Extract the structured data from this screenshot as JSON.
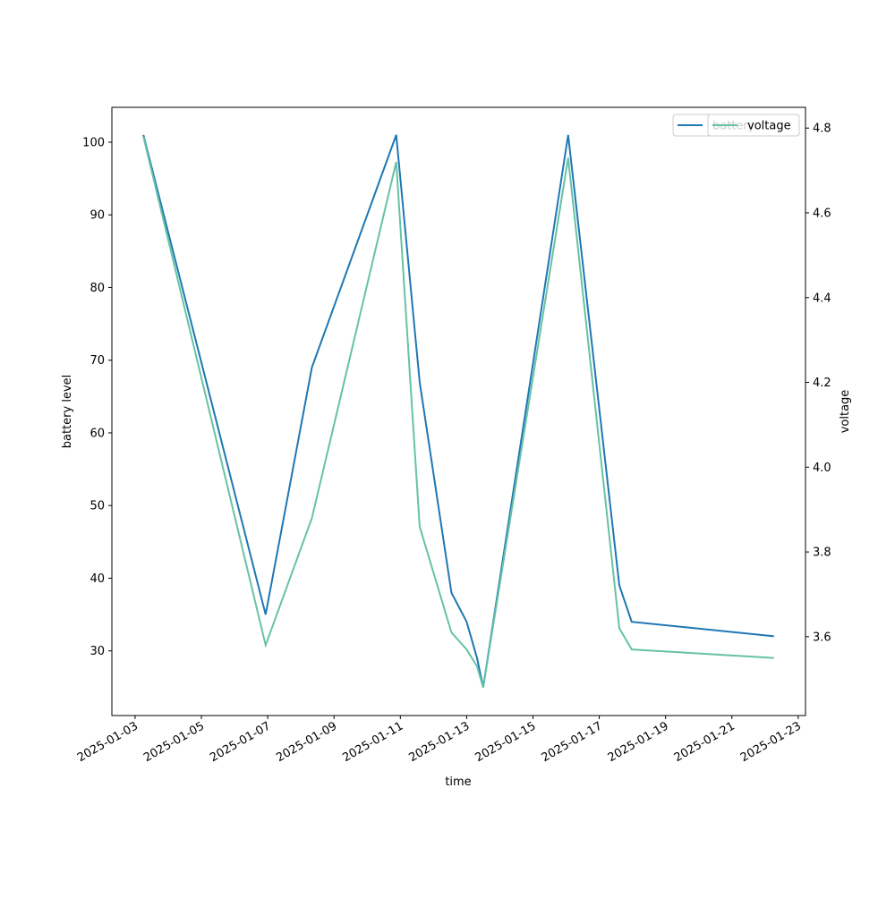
{
  "chart_data": {
    "type": "line",
    "x": [
      "2025-01-03T06:00",
      "2025-01-06T22:30",
      "2025-01-08T08:00",
      "2025-01-10T21:00",
      "2025-01-11T14:00",
      "2025-01-12T13:00",
      "2025-01-13T00:00",
      "2025-01-13T07:30",
      "2025-01-13T12:00",
      "2025-01-16T01:30",
      "2025-01-17T14:30",
      "2025-01-17T23:30",
      "2025-01-22T06:30"
    ],
    "series": [
      {
        "name": "battery",
        "color": "#1f77b4",
        "axis": "y",
        "values": [
          101,
          35,
          69,
          101,
          67,
          38,
          34,
          29,
          25,
          101,
          39,
          34,
          32
        ]
      },
      {
        "name": "voltage",
        "color": "#66c2a5",
        "axis": "y2",
        "values": [
          4.78,
          3.58,
          3.88,
          4.72,
          3.86,
          3.61,
          3.57,
          3.53,
          3.48,
          4.73,
          3.62,
          3.57,
          3.55
        ]
      }
    ],
    "xlabel": "time",
    "ylabel": "battery level",
    "y2label": "voltage",
    "xlim": [
      "2025-01-02T07:12",
      "2025-01-23T05:17"
    ],
    "xticks": [
      "2025-01-03",
      "2025-01-05",
      "2025-01-07",
      "2025-01-09",
      "2025-01-11",
      "2025-01-13",
      "2025-01-15",
      "2025-01-17",
      "2025-01-19",
      "2025-01-21",
      "2025-01-23"
    ],
    "ylim": [
      21.1,
      104.8
    ],
    "yticks": [
      30,
      40,
      50,
      60,
      70,
      80,
      90,
      100
    ],
    "y2lim": [
      3.414,
      4.849
    ],
    "y2ticks": [
      3.6,
      3.8,
      {
        "value": 4,
        "label": "4.0"
      },
      4.2,
      4.4,
      4.6,
      4.8
    ],
    "legend": "upper right",
    "grid": false
  }
}
